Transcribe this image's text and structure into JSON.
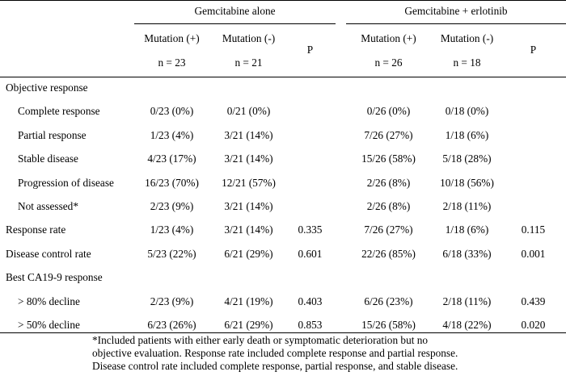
{
  "header": {
    "group1": "Gemcitabine alone",
    "group2": "Gemcitabine + erlotinib",
    "cols": {
      "g1_mut_pos": "Mutation (+)",
      "g1_mut_neg": "Mutation (-)",
      "g1_p": "P",
      "g2_mut_pos": "Mutation (+)",
      "g2_mut_neg": "Mutation (-)",
      "g2_p": "P"
    },
    "ns": {
      "g1_mut_pos": "n = 23",
      "g1_mut_neg": "n = 21",
      "g2_mut_pos": "n = 26",
      "g2_mut_neg": "n = 18"
    }
  },
  "rows": [
    {
      "label": "Objective response",
      "indent": false,
      "c1": "",
      "c2": "",
      "c3": "",
      "c4": "",
      "c5": "",
      "c6": ""
    },
    {
      "label": "Complete response",
      "indent": true,
      "c1": "0/23 (0%)",
      "c2": "0/21 (0%)",
      "c3": "",
      "c4": "0/26 (0%)",
      "c5": "0/18 (0%)",
      "c6": ""
    },
    {
      "label": "Partial response",
      "indent": true,
      "c1": "1/23 (4%)",
      "c2": "3/21 (14%)",
      "c3": "",
      "c4": "7/26 (27%)",
      "c5": "1/18 (6%)",
      "c6": ""
    },
    {
      "label": "Stable disease",
      "indent": true,
      "c1": "4/23 (17%)",
      "c2": "3/21 (14%)",
      "c3": "",
      "c4": "15/26 (58%)",
      "c5": "5/18 (28%)",
      "c6": ""
    },
    {
      "label": "Progression of disease",
      "indent": true,
      "c1": "16/23 (70%)",
      "c2": "12/21 (57%)",
      "c3": "",
      "c4": "2/26 (8%)",
      "c5": "10/18 (56%)",
      "c6": ""
    },
    {
      "label": "Not assessed*",
      "indent": true,
      "c1": "2/23 (9%)",
      "c2": "3/21 (14%)",
      "c3": "",
      "c4": "2/26 (8%)",
      "c5": "2/18 (11%)",
      "c6": ""
    },
    {
      "label": "Response rate",
      "indent": false,
      "c1": "1/23 (4%)",
      "c2": "3/21 (14%)",
      "c3": "0.335",
      "c4": "7/26 (27%)",
      "c5": "1/18 (6%)",
      "c6": "0.115"
    },
    {
      "label": "Disease control rate",
      "indent": false,
      "c1": "5/23 (22%)",
      "c2": "6/21 (29%)",
      "c3": "0.601",
      "c4": "22/26 (85%)",
      "c5": "6/18 (33%)",
      "c6": "0.001"
    },
    {
      "label": "Best CA19-9 response",
      "indent": false,
      "c1": "",
      "c2": "",
      "c3": "",
      "c4": "",
      "c5": "",
      "c6": ""
    },
    {
      "label": "> 80% decline",
      "indent": true,
      "c1": "2/23 (9%)",
      "c2": "4/21 (19%)",
      "c3": "0.403",
      "c4": "6/26 (23%)",
      "c5": "2/18 (11%)",
      "c6": "0.439"
    },
    {
      "label": "> 50% decline",
      "indent": true,
      "c1": "6/23 (26%)",
      "c2": "6/21 (29%)",
      "c3": "0.853",
      "c4": "15/26 (58%)",
      "c5": "4/18 (22%)",
      "c6": "0.020"
    }
  ],
  "footnote": [
    "*Included patients with either early death or symptomatic deterioration but no",
    "objective evaluation. Response rate included complete response and partial response.",
    "Disease control rate included complete response, partial response, and stable disease."
  ]
}
